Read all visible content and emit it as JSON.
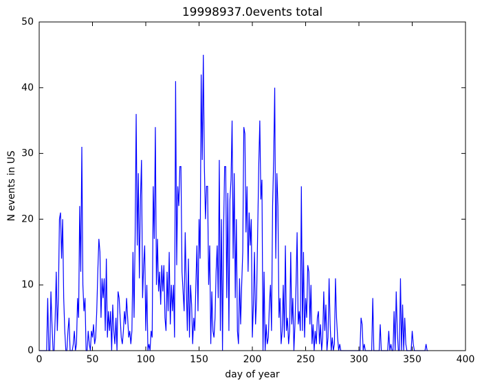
{
  "chart_data": {
    "type": "line",
    "title": "19998937.0events total",
    "x_label": "day of year",
    "y_label": "N events in US",
    "xlim": [
      0,
      400
    ],
    "ylim": [
      0,
      50
    ],
    "xticks": [
      0,
      50,
      100,
      150,
      200,
      250,
      300,
      350,
      400
    ],
    "yticks": [
      0,
      10,
      20,
      30,
      40,
      50
    ],
    "series": [
      {
        "color": "#0000ff",
        "x": [
          0,
          1,
          2,
          3,
          4,
          5,
          6,
          7,
          8,
          9,
          10,
          11,
          12,
          13,
          14,
          15,
          16,
          17,
          18,
          19,
          20,
          21,
          22,
          23,
          24,
          25,
          26,
          27,
          28,
          29,
          30,
          31,
          32,
          33,
          34,
          35,
          36,
          37,
          38,
          39,
          40,
          41,
          42,
          43,
          44,
          45,
          46,
          47,
          48,
          49,
          50,
          51,
          52,
          53,
          54,
          55,
          56,
          57,
          58,
          59,
          60,
          61,
          62,
          63,
          64,
          65,
          66,
          67,
          68,
          69,
          70,
          71,
          72,
          73,
          74,
          75,
          76,
          77,
          78,
          79,
          80,
          81,
          82,
          83,
          84,
          85,
          86,
          87,
          88,
          89,
          90,
          91,
          92,
          93,
          94,
          95,
          96,
          97,
          98,
          99,
          100,
          101,
          102,
          103,
          104,
          105,
          106,
          107,
          108,
          109,
          110,
          111,
          112,
          113,
          114,
          115,
          116,
          117,
          118,
          119,
          120,
          121,
          122,
          123,
          124,
          125,
          126,
          127,
          128,
          129,
          130,
          131,
          132,
          133,
          134,
          135,
          136,
          137,
          138,
          139,
          140,
          141,
          142,
          143,
          144,
          145,
          146,
          147,
          148,
          149,
          150,
          151,
          152,
          153,
          154,
          155,
          156,
          157,
          158,
          159,
          160,
          161,
          162,
          163,
          164,
          165,
          166,
          167,
          168,
          169,
          170,
          171,
          172,
          173,
          174,
          175,
          176,
          177,
          178,
          179,
          180,
          181,
          182,
          183,
          184,
          185,
          186,
          187,
          188,
          189,
          190,
          191,
          192,
          193,
          194,
          195,
          196,
          197,
          198,
          199,
          200,
          201,
          202,
          203,
          204,
          205,
          206,
          207,
          208,
          209,
          210,
          211,
          212,
          213,
          214,
          215,
          216,
          217,
          218,
          219,
          220,
          221,
          222,
          223,
          224,
          225,
          226,
          227,
          228,
          229,
          230,
          231,
          232,
          233,
          234,
          235,
          236,
          237,
          238,
          239,
          240,
          241,
          242,
          243,
          244,
          245,
          246,
          247,
          248,
          249,
          250,
          251,
          252,
          253,
          254,
          255,
          256,
          257,
          258,
          259,
          260,
          261,
          262,
          263,
          264,
          265,
          266,
          267,
          268,
          269,
          270,
          271,
          272,
          273,
          274,
          275,
          276,
          277,
          278,
          279,
          280,
          281,
          282,
          283,
          284,
          285,
          286,
          287,
          288,
          289,
          290,
          291,
          292,
          293,
          294,
          295,
          296,
          297,
          298,
          299,
          300,
          301,
          302,
          303,
          304,
          305,
          306,
          307,
          308,
          309,
          310,
          311,
          312,
          313,
          314,
          315,
          316,
          317,
          318,
          319,
          320,
          321,
          322,
          323,
          324,
          325,
          326,
          327,
          328,
          329,
          330,
          331,
          332,
          333,
          334,
          335,
          336,
          337,
          338,
          339,
          340,
          341,
          342,
          343,
          344,
          345,
          346,
          347,
          348,
          349,
          350,
          351,
          352,
          353,
          354,
          355,
          356,
          357,
          358,
          359,
          360,
          361,
          362,
          363,
          364,
          365
        ],
        "values": [
          0,
          0,
          0,
          0,
          0,
          0,
          0,
          0,
          8,
          0,
          0,
          9,
          4,
          0,
          0,
          5,
          12,
          3,
          8,
          20,
          21,
          14,
          20,
          8,
          3,
          0,
          0,
          3,
          5,
          0,
          0,
          0,
          1,
          3,
          0,
          1,
          8,
          5,
          22,
          12,
          31,
          10,
          6,
          8,
          0,
          0,
          3,
          1,
          0,
          3,
          2,
          4,
          1,
          2,
          6,
          12,
          17,
          15,
          5,
          11,
          8,
          11,
          3,
          14,
          2,
          6,
          3,
          6,
          0,
          7,
          3,
          1,
          5,
          0,
          9,
          8,
          5,
          2,
          1,
          3,
          6,
          4,
          8,
          5,
          2,
          3,
          1,
          3,
          15,
          5,
          17,
          36,
          16,
          27,
          11,
          23,
          29,
          8,
          13,
          16,
          3,
          10,
          0,
          1,
          0,
          3,
          2,
          25,
          17,
          34,
          10,
          17,
          9,
          12,
          7,
          13,
          9,
          13,
          5,
          3,
          12,
          6,
          15,
          4,
          10,
          6,
          10,
          2,
          41,
          13,
          25,
          22,
          28,
          28,
          12,
          9,
          6,
          18,
          10,
          3,
          14,
          2,
          10,
          7,
          1,
          5,
          3,
          10,
          16,
          6,
          20,
          14,
          42,
          29,
          45,
          28,
          20,
          25,
          25,
          10,
          16,
          1,
          9,
          3,
          2,
          5,
          12,
          16,
          8,
          29,
          3,
          20,
          0,
          18,
          28,
          28,
          8,
          24,
          3,
          23,
          26,
          35,
          14,
          27,
          8,
          20,
          3,
          1,
          11,
          4,
          10,
          15,
          34,
          33,
          18,
          25,
          12,
          21,
          16,
          20,
          2,
          7,
          15,
          4,
          8,
          18,
          28,
          35,
          23,
          26,
          0,
          12,
          0,
          4,
          1,
          2,
          7,
          10,
          3,
          22,
          29,
          40,
          14,
          27,
          22,
          5,
          8,
          1,
          3,
          10,
          2,
          16,
          3,
          5,
          1,
          3,
          15,
          4,
          8,
          0,
          4,
          10,
          18,
          4,
          6,
          3,
          25,
          3,
          15,
          2,
          8,
          5,
          13,
          12,
          4,
          10,
          1,
          4,
          0,
          3,
          1,
          5,
          6,
          1,
          4,
          0,
          2,
          9,
          3,
          7,
          0,
          2,
          11,
          4,
          0,
          2,
          0,
          1,
          11,
          5,
          2,
          0,
          1,
          0,
          0,
          0,
          0,
          0,
          0,
          0,
          0,
          0,
          0,
          0,
          0,
          0,
          0,
          0,
          0,
          0,
          0,
          0,
          5,
          4,
          0,
          1,
          0,
          0,
          0,
          0,
          0,
          0,
          0,
          8,
          0,
          0,
          0,
          0,
          0,
          0,
          4,
          0,
          0,
          0,
          0,
          0,
          0,
          0,
          3,
          0,
          1,
          0,
          0,
          6,
          0,
          9,
          3,
          0,
          0,
          11,
          0,
          7,
          0,
          5,
          1,
          0,
          0,
          0,
          0,
          0,
          3,
          1,
          0,
          0,
          0,
          0,
          0,
          0,
          0,
          0,
          0,
          0,
          0,
          1,
          0,
          0
        ]
      }
    ]
  }
}
